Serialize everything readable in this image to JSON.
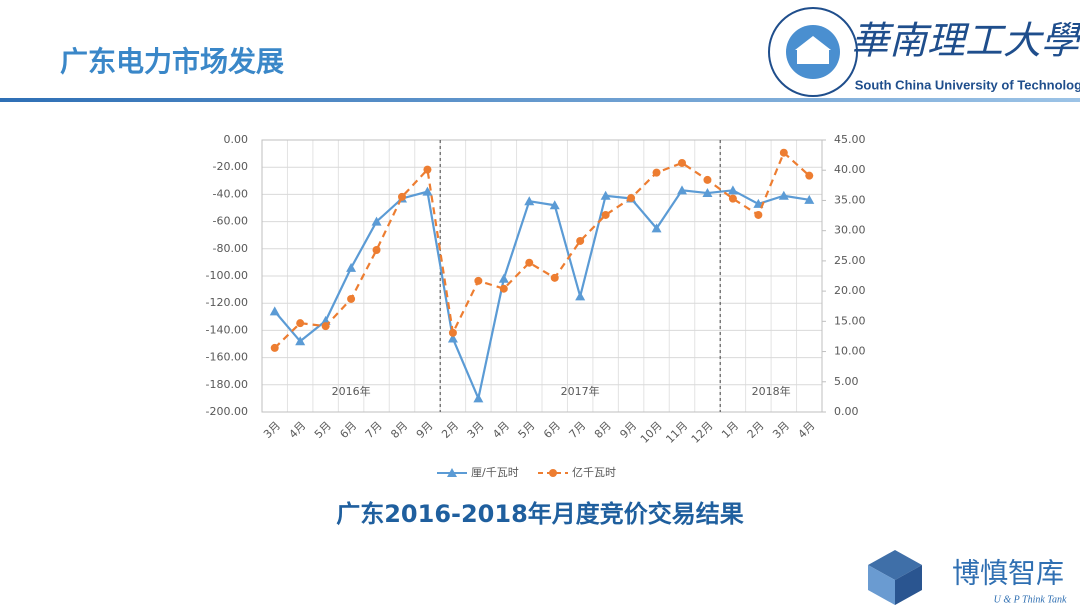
{
  "header": {
    "title": "广东电力市场发展"
  },
  "university": {
    "name_cn": "華南理工大學",
    "name_en": "South China University of Technology"
  },
  "think_tank": {
    "name_cn": "博慎智库",
    "name_en": "U & P Think Tank"
  },
  "chart_data": {
    "type": "line",
    "title": "广东2016-2018年月度竞价交易结果",
    "categories": [
      "3月",
      "4月",
      "5月",
      "6月",
      "7月",
      "8月",
      "9月",
      "2月",
      "3月",
      "4月",
      "5月",
      "6月",
      "7月",
      "8月",
      "9月",
      "10月",
      "11月",
      "12月",
      "1月",
      "2月",
      "3月",
      "4月"
    ],
    "annotations": [
      "2016年",
      "2017年",
      "2018年"
    ],
    "series": [
      {
        "name": "厘/千瓦时",
        "color": "#5b9bd5",
        "axis": "y",
        "marker": "triangle",
        "dashed": false,
        "values": [
          -126,
          -148,
          -133,
          -94,
          -60,
          -43,
          -38,
          -146,
          -190,
          -102,
          -45,
          -48,
          -115,
          -41,
          -43,
          -65,
          -37,
          -39,
          -37,
          -47,
          -41,
          -44
        ]
      },
      {
        "name": "亿千瓦时",
        "color": "#ed7d31",
        "axis": "y2",
        "marker": "circle",
        "dashed": true,
        "values": [
          10.6,
          14.7,
          14.2,
          18.7,
          26.8,
          35.6,
          40.1,
          13.1,
          21.7,
          20.4,
          24.7,
          22.2,
          28.3,
          32.6,
          35.4,
          39.6,
          41.2,
          38.4,
          35.3,
          32.6,
          42.9,
          39.1
        ]
      }
    ],
    "ylim": [
      -200,
      0
    ],
    "yticks": [
      {
        "value": 0,
        "label": "0.00"
      },
      {
        "value": -20,
        "label": "-20.00"
      },
      {
        "value": -40,
        "label": "-40.00"
      },
      {
        "value": -60,
        "label": "-60.00"
      },
      {
        "value": -80,
        "label": "-80.00"
      },
      {
        "value": -100,
        "label": "-100.00"
      },
      {
        "value": -120,
        "label": "-120.00"
      },
      {
        "value": -140,
        "label": "-140.00"
      },
      {
        "value": -160,
        "label": "-160.00"
      },
      {
        "value": -180,
        "label": "-180.00"
      },
      {
        "value": -200,
        "label": "-200.00"
      }
    ],
    "y2lim": [
      0,
      45
    ],
    "y2ticks": [
      {
        "value": 0,
        "label": "0.00"
      },
      {
        "value": 5,
        "label": "5.00"
      },
      {
        "value": 10,
        "label": "10.00"
      },
      {
        "value": 15,
        "label": "15.00"
      },
      {
        "value": 20,
        "label": "20.00"
      },
      {
        "value": 25,
        "label": "25.00"
      },
      {
        "value": 30,
        "label": "30.00"
      },
      {
        "value": 35,
        "label": "35.00"
      },
      {
        "value": 40,
        "label": "40.00"
      },
      {
        "value": 45,
        "label": "45.00"
      }
    ],
    "grid": true,
    "legend": "bottom"
  }
}
